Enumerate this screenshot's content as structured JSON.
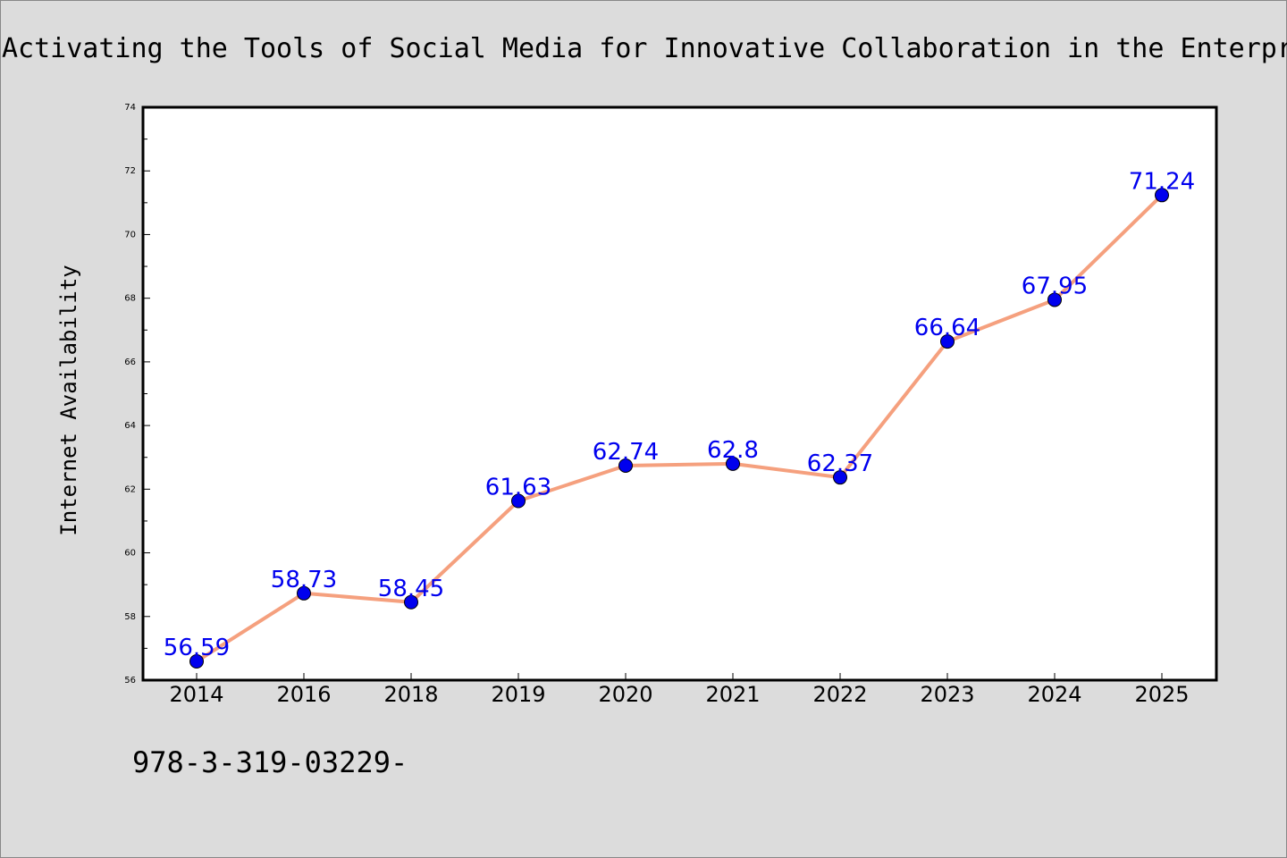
{
  "footer_text": "978-3-319-03229-",
  "chart_data": {
    "type": "line",
    "title": "Activating the Tools of Social Media for Innovative Collaboration in the Enterprise",
    "xlabel": "",
    "ylabel": "Internet Availability",
    "categories": [
      "2014",
      "2016",
      "2018",
      "2019",
      "2020",
      "2021",
      "2022",
      "2023",
      "2024",
      "2025"
    ],
    "series": [
      {
        "values": [
          56.59,
          58.73,
          58.45,
          61.63,
          62.74,
          62.8,
          62.37,
          66.64,
          67.95,
          71.24
        ],
        "labels": [
          "56.59",
          "58.73",
          "58.45",
          "61.63",
          "62.74",
          "62.8",
          "62.37",
          "66.64",
          "67.95",
          "71.24"
        ],
        "line_color": "#f5a07e",
        "marker_color": "#0000ee"
      }
    ],
    "ylim": [
      56,
      74
    ],
    "yticks": [
      "56",
      "58",
      "60",
      "62",
      "64",
      "66",
      "68",
      "70",
      "72",
      "74"
    ],
    "grid": false,
    "legend": "none",
    "colors": {
      "background": "#dcdcdc",
      "plot_background": "#ffffff",
      "label_color": "#0000ee"
    }
  }
}
